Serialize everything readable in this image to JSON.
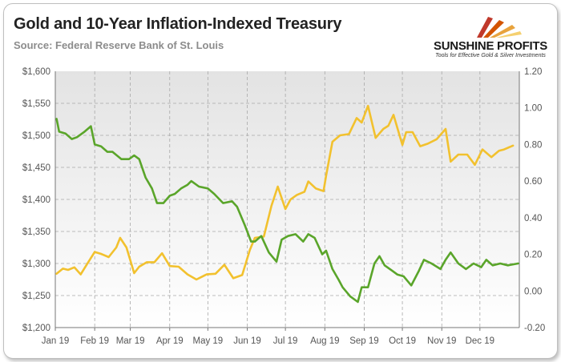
{
  "header": {
    "title": "Gold and 10-Year Inflation-Indexed Treasury",
    "subtitle": "Source: Federal Reserve Bank of St. Louis"
  },
  "logo": {
    "name": "SUNSHINE PROFITS",
    "tagline": "Tools for Effective Gold & Silver Investments",
    "colors": [
      "#c0392b",
      "#e8a33d",
      "#f5d070"
    ]
  },
  "chart_data": {
    "type": "line",
    "title": "Gold and 10-Year Inflation-Indexed Treasury",
    "x_tick_labels": [
      "Jan 19",
      "Feb 19",
      "Mar 19",
      "Apr 19",
      "May 19",
      "Jun 19",
      "Jul 19",
      "Aug 19",
      "Sep 19",
      "Oct 19",
      "Nov 19",
      "Dec 19"
    ],
    "y_left": {
      "min": 1200,
      "max": 1600,
      "step": 50,
      "tick_labels": [
        "$1,200",
        "$1,250",
        "$1,300",
        "$1,350",
        "$1,400",
        "$1,450",
        "$1,500",
        "$1,550",
        "$1,600"
      ]
    },
    "y_right": {
      "min": -0.2,
      "max": 1.2,
      "step": 0.2,
      "tick_labels": [
        "-0.20",
        "0.00",
        "0.20",
        "0.40",
        "0.60",
        "0.80",
        "1.00",
        "1.20"
      ]
    },
    "grid": true,
    "legend": "none",
    "series": [
      {
        "axis": "left",
        "color": "#f2c12e",
        "values": [
          [
            "2019-01-02",
            1284
          ],
          [
            "2019-01-07",
            1292
          ],
          [
            "2019-01-11",
            1290
          ],
          [
            "2019-01-16",
            1294
          ],
          [
            "2019-01-21",
            1283
          ],
          [
            "2019-01-25",
            1296
          ],
          [
            "2019-02-01",
            1318
          ],
          [
            "2019-02-06",
            1315
          ],
          [
            "2019-02-12",
            1310
          ],
          [
            "2019-02-18",
            1325
          ],
          [
            "2019-02-21",
            1340
          ],
          [
            "2019-02-26",
            1325
          ],
          [
            "2019-03-04",
            1285
          ],
          [
            "2019-03-08",
            1295
          ],
          [
            "2019-03-14",
            1302
          ],
          [
            "2019-03-20",
            1302
          ],
          [
            "2019-03-26",
            1316
          ],
          [
            "2019-04-01",
            1296
          ],
          [
            "2019-04-08",
            1295
          ],
          [
            "2019-04-15",
            1283
          ],
          [
            "2019-04-22",
            1275
          ],
          [
            "2019-04-30",
            1283
          ],
          [
            "2019-05-07",
            1284
          ],
          [
            "2019-05-14",
            1298
          ],
          [
            "2019-05-21",
            1277
          ],
          [
            "2019-05-28",
            1282
          ],
          [
            "2019-06-03",
            1321
          ],
          [
            "2019-06-07",
            1340
          ],
          [
            "2019-06-14",
            1342
          ],
          [
            "2019-06-20",
            1390
          ],
          [
            "2019-06-25",
            1420
          ],
          [
            "2019-07-01",
            1385
          ],
          [
            "2019-07-05",
            1400
          ],
          [
            "2019-07-10",
            1407
          ],
          [
            "2019-07-16",
            1412
          ],
          [
            "2019-07-19",
            1428
          ],
          [
            "2019-07-25",
            1417
          ],
          [
            "2019-07-31",
            1413
          ],
          [
            "2019-08-02",
            1437
          ],
          [
            "2019-08-07",
            1490
          ],
          [
            "2019-08-13",
            1500
          ],
          [
            "2019-08-20",
            1502
          ],
          [
            "2019-08-26",
            1527
          ],
          [
            "2019-08-30",
            1520
          ],
          [
            "2019-09-04",
            1546
          ],
          [
            "2019-09-10",
            1496
          ],
          [
            "2019-09-16",
            1510
          ],
          [
            "2019-09-20",
            1515
          ],
          [
            "2019-09-24",
            1532
          ],
          [
            "2019-10-01",
            1485
          ],
          [
            "2019-10-04",
            1505
          ],
          [
            "2019-10-09",
            1505
          ],
          [
            "2019-10-15",
            1483
          ],
          [
            "2019-10-21",
            1487
          ],
          [
            "2019-10-28",
            1494
          ],
          [
            "2019-11-04",
            1510
          ],
          [
            "2019-11-08",
            1459
          ],
          [
            "2019-11-14",
            1470
          ],
          [
            "2019-11-21",
            1470
          ],
          [
            "2019-11-27",
            1454
          ],
          [
            "2019-12-03",
            1478
          ],
          [
            "2019-12-10",
            1466
          ],
          [
            "2019-12-16",
            1476
          ],
          [
            "2019-12-20",
            1478
          ],
          [
            "2019-12-27",
            1484
          ]
        ]
      },
      {
        "axis": "right",
        "color": "#5aa52a",
        "values": [
          [
            "2019-01-02",
            0.94
          ],
          [
            "2019-01-04",
            0.87
          ],
          [
            "2019-01-09",
            0.86
          ],
          [
            "2019-01-14",
            0.83
          ],
          [
            "2019-01-18",
            0.84
          ],
          [
            "2019-01-24",
            0.87
          ],
          [
            "2019-01-29",
            0.9
          ],
          [
            "2019-02-01",
            0.8
          ],
          [
            "2019-02-06",
            0.79
          ],
          [
            "2019-02-11",
            0.76
          ],
          [
            "2019-02-15",
            0.76
          ],
          [
            "2019-02-22",
            0.72
          ],
          [
            "2019-02-28",
            0.72
          ],
          [
            "2019-03-04",
            0.74
          ],
          [
            "2019-03-08",
            0.72
          ],
          [
            "2019-03-13",
            0.62
          ],
          [
            "2019-03-18",
            0.56
          ],
          [
            "2019-03-22",
            0.48
          ],
          [
            "2019-03-27",
            0.48
          ],
          [
            "2019-04-01",
            0.52
          ],
          [
            "2019-04-05",
            0.53
          ],
          [
            "2019-04-10",
            0.56
          ],
          [
            "2019-04-15",
            0.58
          ],
          [
            "2019-04-18",
            0.6
          ],
          [
            "2019-04-24",
            0.57
          ],
          [
            "2019-05-01",
            0.56
          ],
          [
            "2019-05-06",
            0.53
          ],
          [
            "2019-05-13",
            0.48
          ],
          [
            "2019-05-20",
            0.49
          ],
          [
            "2019-05-24",
            0.46
          ],
          [
            "2019-05-30",
            0.36
          ],
          [
            "2019-06-04",
            0.27
          ],
          [
            "2019-06-07",
            0.27
          ],
          [
            "2019-06-12",
            0.3
          ],
          [
            "2019-06-18",
            0.21
          ],
          [
            "2019-06-24",
            0.16
          ],
          [
            "2019-06-28",
            0.28
          ],
          [
            "2019-07-03",
            0.3
          ],
          [
            "2019-07-09",
            0.31
          ],
          [
            "2019-07-15",
            0.27
          ],
          [
            "2019-07-19",
            0.31
          ],
          [
            "2019-07-24",
            0.29
          ],
          [
            "2019-07-30",
            0.2
          ],
          [
            "2019-08-02",
            0.22
          ],
          [
            "2019-08-07",
            0.12
          ],
          [
            "2019-08-12",
            0.06
          ],
          [
            "2019-08-15",
            0.02
          ],
          [
            "2019-08-21",
            -0.03
          ],
          [
            "2019-08-27",
            -0.06
          ],
          [
            "2019-08-30",
            0.02
          ],
          [
            "2019-09-04",
            0.02
          ],
          [
            "2019-09-09",
            0.15
          ],
          [
            "2019-09-13",
            0.19
          ],
          [
            "2019-09-17",
            0.14
          ],
          [
            "2019-09-23",
            0.11
          ],
          [
            "2019-09-27",
            0.09
          ],
          [
            "2019-10-02",
            0.08
          ],
          [
            "2019-10-08",
            0.03
          ],
          [
            "2019-10-14",
            0.11
          ],
          [
            "2019-10-18",
            0.17
          ],
          [
            "2019-10-24",
            0.15
          ],
          [
            "2019-10-31",
            0.12
          ],
          [
            "2019-11-04",
            0.17
          ],
          [
            "2019-11-08",
            0.21
          ],
          [
            "2019-11-14",
            0.15
          ],
          [
            "2019-11-20",
            0.12
          ],
          [
            "2019-11-26",
            0.15
          ],
          [
            "2019-12-02",
            0.13
          ],
          [
            "2019-12-06",
            0.17
          ],
          [
            "2019-12-11",
            0.14
          ],
          [
            "2019-12-17",
            0.15
          ],
          [
            "2019-12-23",
            0.14
          ],
          [
            "2019-12-31",
            0.15
          ]
        ]
      }
    ]
  }
}
